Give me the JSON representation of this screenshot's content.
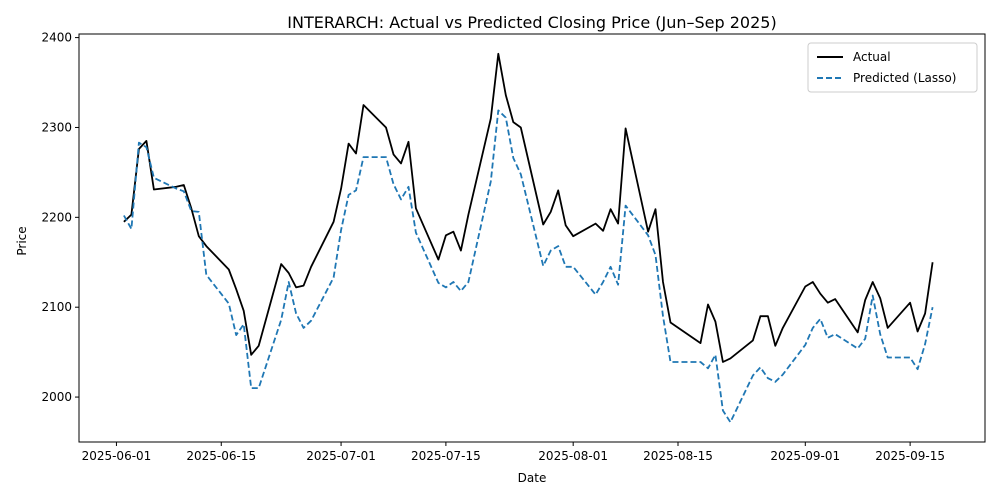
{
  "chart_data": {
    "type": "line",
    "title": "INTERARCH: Actual vs Predicted Closing Price (Jun–Sep 2025)",
    "xlabel": "Date",
    "ylabel": "Price",
    "x_axis": {
      "kind": "date",
      "range": [
        "2025-05-27",
        "2025-09-25"
      ],
      "ticks": [
        "2025-06-01",
        "2025-06-15",
        "2025-07-01",
        "2025-07-15",
        "2025-08-01",
        "2025-08-15",
        "2025-09-01",
        "2025-09-15"
      ]
    },
    "y_axis": {
      "range": [
        1950,
        2404
      ],
      "ticks": [
        2000,
        2100,
        2200,
        2300,
        2400
      ]
    },
    "grid": false,
    "legend_position": "top-right",
    "series": [
      {
        "name": "Actual",
        "color": "#000000",
        "style": "solid",
        "points": [
          [
            "2025-06-02",
            2195
          ],
          [
            "2025-06-03",
            2203
          ],
          [
            "2025-06-04",
            2276
          ],
          [
            "2025-06-05",
            2285
          ],
          [
            "2025-06-06",
            2231
          ],
          [
            "2025-06-09",
            2234
          ],
          [
            "2025-06-10",
            2236
          ],
          [
            "2025-06-11",
            2210
          ],
          [
            "2025-06-12",
            2179
          ],
          [
            "2025-06-13",
            2168
          ],
          [
            "2025-06-16",
            2142
          ],
          [
            "2025-06-17",
            2120
          ],
          [
            "2025-06-18",
            2096
          ],
          [
            "2025-06-19",
            2047
          ],
          [
            "2025-06-20",
            2057
          ],
          [
            "2025-06-23",
            2148
          ],
          [
            "2025-06-24",
            2138
          ],
          [
            "2025-06-25",
            2122
          ],
          [
            "2025-06-26",
            2124
          ],
          [
            "2025-06-27",
            2145
          ],
          [
            "2025-06-30",
            2195
          ],
          [
            "2025-07-01",
            2232
          ],
          [
            "2025-07-02",
            2282
          ],
          [
            "2025-07-03",
            2271
          ],
          [
            "2025-07-04",
            2325
          ],
          [
            "2025-07-07",
            2300
          ],
          [
            "2025-07-08",
            2270
          ],
          [
            "2025-07-09",
            2260
          ],
          [
            "2025-07-10",
            2284
          ],
          [
            "2025-07-11",
            2210
          ],
          [
            "2025-07-14",
            2153
          ],
          [
            "2025-07-15",
            2180
          ],
          [
            "2025-07-16",
            2184
          ],
          [
            "2025-07-17",
            2163
          ],
          [
            "2025-07-18",
            2203
          ],
          [
            "2025-07-21",
            2310
          ],
          [
            "2025-07-22",
            2382
          ],
          [
            "2025-07-23",
            2336
          ],
          [
            "2025-07-24",
            2306
          ],
          [
            "2025-07-25",
            2300
          ],
          [
            "2025-07-28",
            2192
          ],
          [
            "2025-07-29",
            2206
          ],
          [
            "2025-07-30",
            2230
          ],
          [
            "2025-07-31",
            2191
          ],
          [
            "2025-08-01",
            2179
          ],
          [
            "2025-08-04",
            2193
          ],
          [
            "2025-08-05",
            2185
          ],
          [
            "2025-08-06",
            2209
          ],
          [
            "2025-08-07",
            2193
          ],
          [
            "2025-08-08",
            2299
          ],
          [
            "2025-08-11",
            2184
          ],
          [
            "2025-08-12",
            2209
          ],
          [
            "2025-08-13",
            2128
          ],
          [
            "2025-08-14",
            2083
          ],
          [
            "2025-08-18",
            2060
          ],
          [
            "2025-08-19",
            2103
          ],
          [
            "2025-08-20",
            2084
          ],
          [
            "2025-08-21",
            2039
          ],
          [
            "2025-08-22",
            2043
          ],
          [
            "2025-08-25",
            2063
          ],
          [
            "2025-08-26",
            2090
          ],
          [
            "2025-08-27",
            2090
          ],
          [
            "2025-08-28",
            2057
          ],
          [
            "2025-08-29",
            2077
          ],
          [
            "2025-09-01",
            2123
          ],
          [
            "2025-09-02",
            2128
          ],
          [
            "2025-09-03",
            2115
          ],
          [
            "2025-09-04",
            2105
          ],
          [
            "2025-09-05",
            2109
          ],
          [
            "2025-09-08",
            2072
          ],
          [
            "2025-09-09",
            2108
          ],
          [
            "2025-09-10",
            2128
          ],
          [
            "2025-09-11",
            2110
          ],
          [
            "2025-09-12",
            2077
          ],
          [
            "2025-09-15",
            2105
          ],
          [
            "2025-09-16",
            2073
          ],
          [
            "2025-09-17",
            2093
          ],
          [
            "2025-09-18",
            2150
          ]
        ]
      },
      {
        "name": "Predicted (Lasso)",
        "color": "#1f77b4",
        "style": "dashed",
        "points": [
          [
            "2025-06-02",
            2202
          ],
          [
            "2025-06-03",
            2187
          ],
          [
            "2025-06-04",
            2283
          ],
          [
            "2025-06-05",
            2278
          ],
          [
            "2025-06-06",
            2244
          ],
          [
            "2025-06-09",
            2232
          ],
          [
            "2025-06-10",
            2229
          ],
          [
            "2025-06-11",
            2207
          ],
          [
            "2025-06-12",
            2206
          ],
          [
            "2025-06-13",
            2136
          ],
          [
            "2025-06-16",
            2104
          ],
          [
            "2025-06-17",
            2069
          ],
          [
            "2025-06-18",
            2081
          ],
          [
            "2025-06-19",
            2010
          ],
          [
            "2025-06-20",
            2010
          ],
          [
            "2025-06-23",
            2086
          ],
          [
            "2025-06-24",
            2128
          ],
          [
            "2025-06-25",
            2093
          ],
          [
            "2025-06-26",
            2077
          ],
          [
            "2025-06-27",
            2085
          ],
          [
            "2025-06-30",
            2133
          ],
          [
            "2025-07-01",
            2186
          ],
          [
            "2025-07-02",
            2225
          ],
          [
            "2025-07-03",
            2230
          ],
          [
            "2025-07-04",
            2267
          ],
          [
            "2025-07-07",
            2267
          ],
          [
            "2025-07-08",
            2237
          ],
          [
            "2025-07-09",
            2220
          ],
          [
            "2025-07-10",
            2234
          ],
          [
            "2025-07-11",
            2183
          ],
          [
            "2025-07-14",
            2127
          ],
          [
            "2025-07-15",
            2122
          ],
          [
            "2025-07-16",
            2128
          ],
          [
            "2025-07-17",
            2118
          ],
          [
            "2025-07-18",
            2128
          ],
          [
            "2025-07-21",
            2240
          ],
          [
            "2025-07-22",
            2319
          ],
          [
            "2025-07-23",
            2311
          ],
          [
            "2025-07-24",
            2266
          ],
          [
            "2025-07-25",
            2248
          ],
          [
            "2025-07-28",
            2146
          ],
          [
            "2025-07-29",
            2163
          ],
          [
            "2025-07-30",
            2168
          ],
          [
            "2025-07-31",
            2145
          ],
          [
            "2025-08-01",
            2145
          ],
          [
            "2025-08-04",
            2114
          ],
          [
            "2025-08-05",
            2128
          ],
          [
            "2025-08-06",
            2145
          ],
          [
            "2025-08-07",
            2125
          ],
          [
            "2025-08-08",
            2213
          ],
          [
            "2025-08-11",
            2180
          ],
          [
            "2025-08-12",
            2158
          ],
          [
            "2025-08-13",
            2090
          ],
          [
            "2025-08-14",
            2039
          ],
          [
            "2025-08-18",
            2039
          ],
          [
            "2025-08-19",
            2032
          ],
          [
            "2025-08-20",
            2047
          ],
          [
            "2025-08-21",
            1985
          ],
          [
            "2025-08-22",
            1972
          ],
          [
            "2025-08-25",
            2024
          ],
          [
            "2025-08-26",
            2033
          ],
          [
            "2025-08-27",
            2021
          ],
          [
            "2025-08-28",
            2017
          ],
          [
            "2025-08-29",
            2025
          ],
          [
            "2025-09-01",
            2058
          ],
          [
            "2025-09-02",
            2077
          ],
          [
            "2025-09-03",
            2087
          ],
          [
            "2025-09-04",
            2066
          ],
          [
            "2025-09-05",
            2070
          ],
          [
            "2025-09-08",
            2054
          ],
          [
            "2025-09-09",
            2065
          ],
          [
            "2025-09-10",
            2113
          ],
          [
            "2025-09-11",
            2070
          ],
          [
            "2025-09-12",
            2044
          ],
          [
            "2025-09-15",
            2044
          ],
          [
            "2025-09-16",
            2031
          ],
          [
            "2025-09-17",
            2059
          ],
          [
            "2025-09-18",
            2100
          ]
        ]
      }
    ]
  }
}
